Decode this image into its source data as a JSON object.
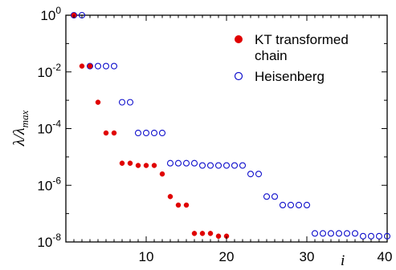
{
  "chart_data": {
    "type": "scatter",
    "title": "",
    "xlabel": "i",
    "ylabel_main": "λ/λ",
    "ylabel_sub": "max",
    "yscale": "log",
    "xlim": [
      0,
      40
    ],
    "ylim_exp": [
      -8,
      0
    ],
    "grid": false,
    "legend_position": "top-right",
    "x_ticks": [
      10,
      20,
      30,
      40
    ],
    "y_ticks": [
      {
        "base": "10",
        "exp": "0",
        "value": 1
      },
      {
        "base": "10",
        "exp": "-2",
        "value": 0.01
      },
      {
        "base": "10",
        "exp": "-4",
        "value": 0.0001
      },
      {
        "base": "10",
        "exp": "-6",
        "value": 1e-06
      },
      {
        "base": "10",
        "exp": "-8",
        "value": 1e-08
      }
    ],
    "series": [
      {
        "name": "KT transformed chain",
        "marker": "filled-circle",
        "color": "#e00000",
        "x": [
          1,
          2,
          3,
          4,
          5,
          6,
          7,
          8,
          9,
          10,
          11,
          12,
          13,
          14,
          15,
          16,
          17,
          18,
          19,
          20
        ],
        "y": [
          1,
          0.016,
          0.016,
          0.00085,
          7e-05,
          7e-05,
          6e-06,
          6e-06,
          5e-06,
          5e-06,
          5e-06,
          2.5e-06,
          4e-07,
          2e-07,
          2e-07,
          2e-08,
          2e-08,
          2e-08,
          1.6e-08,
          1.6e-08
        ]
      },
      {
        "name": "Heisenberg",
        "marker": "open-circle",
        "color": "#1010cc",
        "x": [
          1,
          2,
          3,
          4,
          5,
          6,
          7,
          8,
          9,
          10,
          11,
          12,
          13,
          14,
          15,
          16,
          17,
          18,
          19,
          20,
          21,
          22,
          23,
          24,
          25,
          26,
          27,
          28,
          29,
          30,
          31,
          32,
          33,
          34,
          35,
          36,
          37,
          38,
          39,
          40
        ],
        "y": [
          1,
          1,
          0.016,
          0.016,
          0.016,
          0.016,
          0.00085,
          0.00085,
          7e-05,
          7e-05,
          7e-05,
          7e-05,
          6e-06,
          6e-06,
          6e-06,
          6e-06,
          5e-06,
          5e-06,
          5e-06,
          5e-06,
          5e-06,
          5e-06,
          2.5e-06,
          2.5e-06,
          4e-07,
          4e-07,
          2e-07,
          2e-07,
          2e-07,
          2e-07,
          2e-08,
          2e-08,
          2e-08,
          2e-08,
          2e-08,
          2e-08,
          1.6e-08,
          1.6e-08,
          1.6e-08,
          1.6e-08
        ]
      }
    ]
  }
}
